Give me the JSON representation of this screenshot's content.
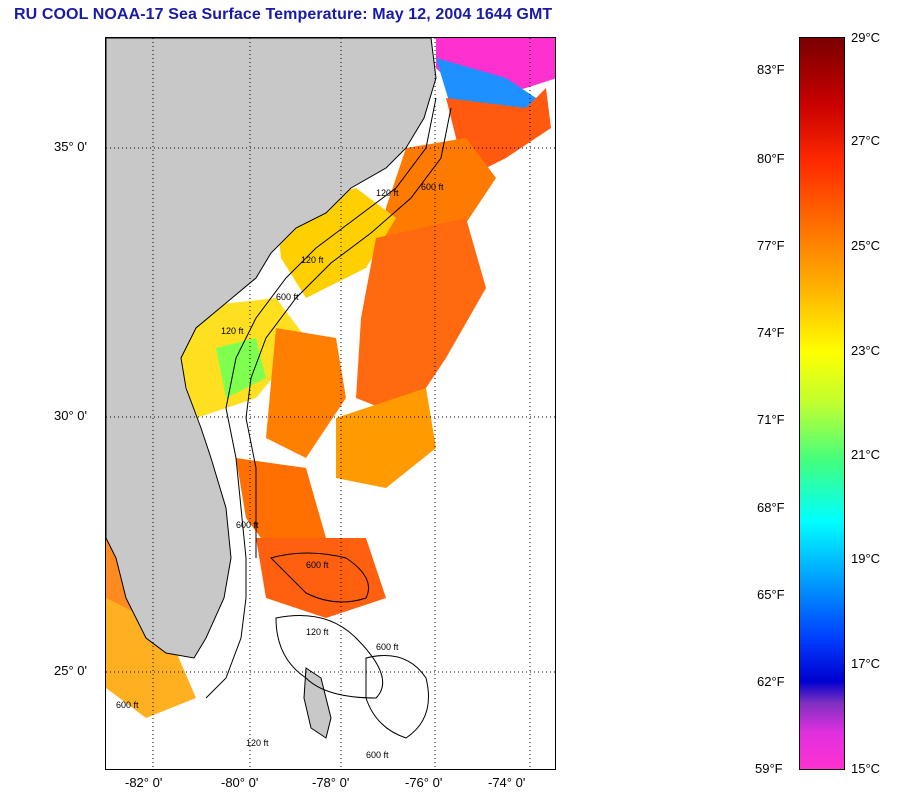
{
  "title": "RU COOL  NOAA-17  Sea Surface Temperature:  May 12, 2004 1644 GMT",
  "map": {
    "lat_labels": [
      "35° 0'",
      "30° 0'",
      "25° 0'"
    ],
    "lon_labels": [
      "-82° 0'",
      "-80° 0'",
      "-78° 0'",
      "-76° 0'",
      "-74° 0'"
    ],
    "isobath_labels": [
      "120 ft",
      "600 ft",
      "120 ft",
      "600 ft",
      "120 ft",
      "600 ft",
      "600 ft",
      "120 ft",
      "600 ft",
      "600 ft",
      "120 ft",
      "600 ft"
    ],
    "colors": {
      "land": "#c8c8c8",
      "ocean_nodata": "#ffffff",
      "grid": "#000000"
    }
  },
  "colorbar": {
    "fahrenheit_labels": [
      "83°F",
      "80°F",
      "77°F",
      "74°F",
      "71°F",
      "68°F",
      "65°F",
      "62°F",
      "59°F"
    ],
    "celsius_labels": [
      "29°C",
      "27°C",
      "25°C",
      "23°C",
      "21°C",
      "19°C",
      "17°C",
      "15°C"
    ],
    "range_c": [
      15,
      29
    ],
    "range_f": [
      59,
      84.2
    ],
    "colors": [
      "#7a0000",
      "#ff2a00",
      "#ffb000",
      "#ffff00",
      "#40ff80",
      "#00ffff",
      "#0040ff",
      "#8030c0",
      "#ff30d0"
    ]
  }
}
